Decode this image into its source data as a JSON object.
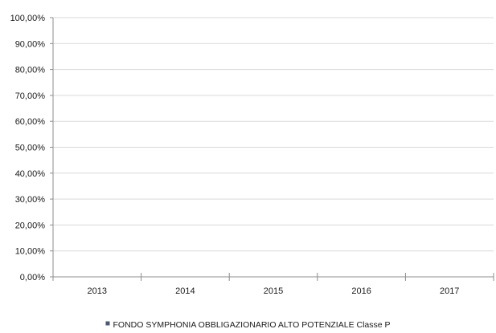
{
  "chart_data": {
    "type": "bar",
    "categories": [
      "2013",
      "2014",
      "2015",
      "2016",
      "2017"
    ],
    "series": [
      {
        "name": "FONDO SYMPHONIA OBBLIGAZIONARIO ALTO POTENZIALE Classe P",
        "values": [
          null,
          null,
          null,
          null,
          null
        ]
      }
    ],
    "y_ticks": [
      "0,00%",
      "10,00%",
      "20,00%",
      "30,00%",
      "40,00%",
      "50,00%",
      "60,00%",
      "70,00%",
      "80,00%",
      "90,00%",
      "100,00%"
    ],
    "ylim": [
      0,
      100
    ],
    "y_unit": "%",
    "grid": true,
    "legend_position": "bottom-center",
    "colors": {
      "series": "#4a5a73",
      "grid": "#d9d9d9",
      "axis": "#8c8c8c",
      "text": "#1a1a1a"
    }
  }
}
